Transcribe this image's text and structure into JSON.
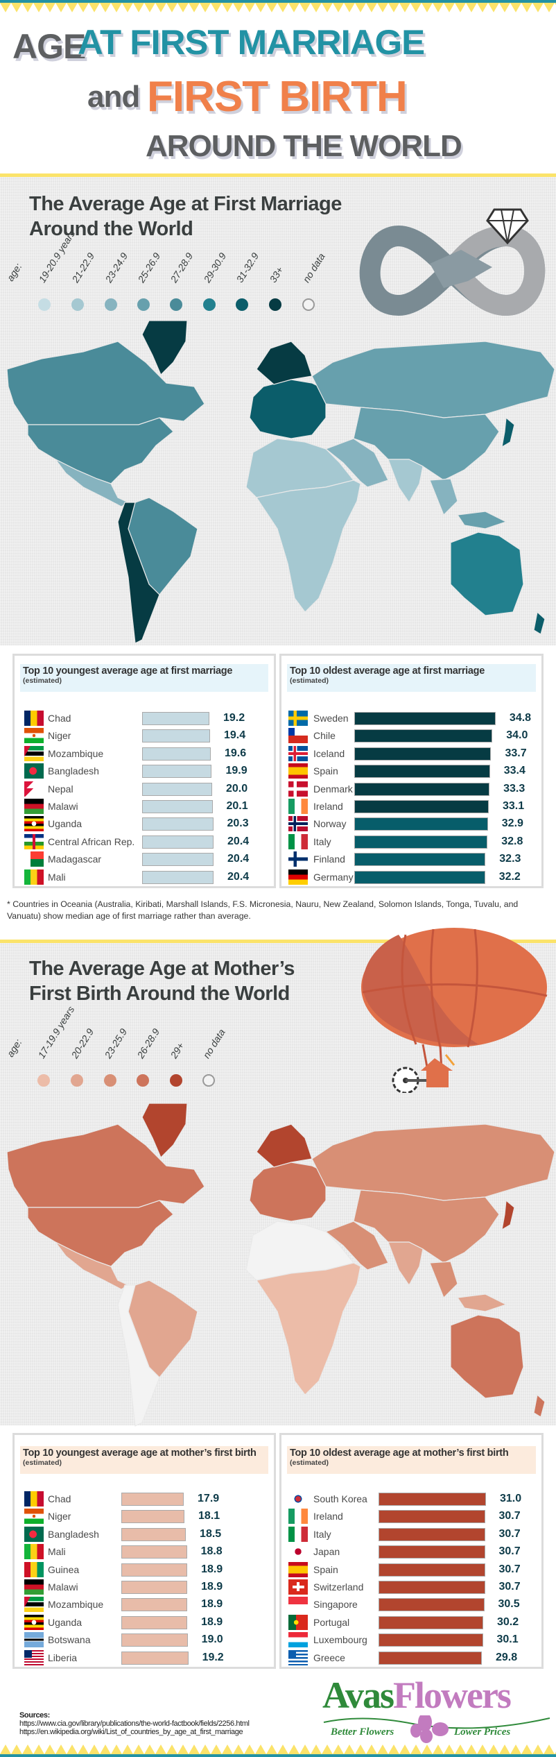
{
  "header": {
    "title_age": "AGE",
    "title_marriage": "AT FIRST MARRIAGE",
    "title_and": "and",
    "title_birth": "FIRST BIRTH",
    "title_world": "AROUND THE WORLD",
    "colors": {
      "teal": "#2292a4",
      "orange": "#f0804a",
      "gray": "#5d5f61",
      "yellow": "#fbe36a"
    }
  },
  "marriage": {
    "title_line1": "The Average Age at First Marriage",
    "title_line2": "Around the World",
    "icon": "infinity-ring-hands-icon",
    "legend_prefix": "age:",
    "legend": [
      {
        "label": "19-20.9 years",
        "color": "#c5dde4"
      },
      {
        "label": "21-22.9",
        "color": "#a5c8d1"
      },
      {
        "label": "23-24.9",
        "color": "#86b3bf"
      },
      {
        "label": "25-26.9",
        "color": "#67a0ad"
      },
      {
        "label": "27-28.9",
        "color": "#4a8b99"
      },
      {
        "label": "29-30.9",
        "color": "#22808e"
      },
      {
        "label": "31-32.9",
        "color": "#0b5d6a"
      },
      {
        "label": "33+",
        "color": "#063b43"
      },
      {
        "label": "no data",
        "color": "#f3f3f3"
      }
    ],
    "youngest": {
      "title": "Top 10 youngest average age at first marriage",
      "subtitle": "(estimated)",
      "bar_color": "#c6dae2",
      "rows": [
        {
          "country": "Chad",
          "value": 19.2,
          "display": "19.2"
        },
        {
          "country": "Niger",
          "value": 19.4,
          "display": "19.4"
        },
        {
          "country": "Mozambique",
          "value": 19.6,
          "display": "19.6"
        },
        {
          "country": "Bangladesh",
          "value": 19.9,
          "display": "19.9"
        },
        {
          "country": "Nepal",
          "value": 20.0,
          "display": "20.0"
        },
        {
          "country": "Malawi",
          "value": 20.1,
          "display": "20.1"
        },
        {
          "country": "Uganda",
          "value": 20.3,
          "display": "20.3"
        },
        {
          "country": "Central African Rep.",
          "value": 20.4,
          "display": "20.4"
        },
        {
          "country": "Madagascar",
          "value": 20.4,
          "display": "20.4"
        },
        {
          "country": "Mali",
          "value": 20.4,
          "display": "20.4"
        }
      ]
    },
    "oldest": {
      "title": "Top 10 oldest average age at first marriage",
      "subtitle": "(estimated)",
      "rows": [
        {
          "country": "Sweden",
          "value": 34.8,
          "display": "34.8",
          "color": "#063b43"
        },
        {
          "country": "Chile",
          "value": 34.0,
          "display": "34.0",
          "color": "#063b43"
        },
        {
          "country": "Iceland",
          "value": 33.7,
          "display": "33.7",
          "color": "#063b43"
        },
        {
          "country": "Spain",
          "value": 33.4,
          "display": "33.4",
          "color": "#063b43"
        },
        {
          "country": "Denmark",
          "value": 33.3,
          "display": "33.3",
          "color": "#063b43"
        },
        {
          "country": "Ireland",
          "value": 33.1,
          "display": "33.1",
          "color": "#063b43"
        },
        {
          "country": "Norway",
          "value": 32.9,
          "display": "32.9",
          "color": "#075d6a"
        },
        {
          "country": "Italy",
          "value": 32.8,
          "display": "32.8",
          "color": "#075d6a"
        },
        {
          "country": "Finland",
          "value": 32.3,
          "display": "32.3",
          "color": "#075d6a"
        },
        {
          "country": "Germany",
          "value": 32.2,
          "display": "32.2",
          "color": "#075d6a"
        }
      ]
    },
    "footnote": "* Countries in Oceania (Australia, Kiribati, Marshall Islands, F.S. Micronesia, Nauru, New Zealand, Solomon Islands, Tonga, Tuvalu, and Vanuatu) show median age of first marriage rather than average."
  },
  "birth": {
    "title_line1": "The Average Age at Mother’s",
    "title_line2": "First Birth Around the World",
    "icon": "hot-air-balloon-stork-icon",
    "legend_prefix": "age:",
    "legend": [
      {
        "label": "17-19.9 years",
        "color": "#ecbca8"
      },
      {
        "label": "20-22.9",
        "color": "#e1a690"
      },
      {
        "label": "23-25.9",
        "color": "#d88f75"
      },
      {
        "label": "26-28.9",
        "color": "#cd745b"
      },
      {
        "label": "29+",
        "color": "#b2452e"
      },
      {
        "label": "no data",
        "color": "#f3f3f3"
      }
    ],
    "youngest": {
      "title": "Top 10 youngest average age at mother’s first birth",
      "subtitle": "(estimated)",
      "bar_color": "#e8bca9",
      "rows": [
        {
          "country": "Chad",
          "value": 17.9,
          "display": "17.9"
        },
        {
          "country": "Niger",
          "value": 18.1,
          "display": "18.1"
        },
        {
          "country": "Bangladesh",
          "value": 18.5,
          "display": "18.5"
        },
        {
          "country": "Mali",
          "value": 18.8,
          "display": "18.8"
        },
        {
          "country": "Guinea",
          "value": 18.9,
          "display": "18.9"
        },
        {
          "country": "Malawi",
          "value": 18.9,
          "display": "18.9"
        },
        {
          "country": "Mozambique",
          "value": 18.9,
          "display": "18.9"
        },
        {
          "country": "Uganda",
          "value": 18.9,
          "display": "18.9"
        },
        {
          "country": "Botswana",
          "value": 19.0,
          "display": "19.0"
        },
        {
          "country": "Liberia",
          "value": 19.2,
          "display": "19.2"
        }
      ]
    },
    "oldest": {
      "title": "Top 10 oldest average age at mother’s first birth",
      "subtitle": "(estimated)",
      "bar_color": "#b2452e",
      "rows": [
        {
          "country": "South Korea",
          "value": 31.0,
          "display": "31.0"
        },
        {
          "country": "Ireland",
          "value": 30.7,
          "display": "30.7"
        },
        {
          "country": "Italy",
          "value": 30.7,
          "display": "30.7"
        },
        {
          "country": "Japan",
          "value": 30.7,
          "display": "30.7"
        },
        {
          "country": "Spain",
          "value": 30.7,
          "display": "30.7"
        },
        {
          "country": "Switzerland",
          "value": 30.7,
          "display": "30.7"
        },
        {
          "country": "Singapore",
          "value": 30.5,
          "display": "30.5"
        },
        {
          "country": "Portugal",
          "value": 30.2,
          "display": "30.2"
        },
        {
          "country": "Luxembourg",
          "value": 30.1,
          "display": "30.1"
        },
        {
          "country": "Greece",
          "value": 29.8,
          "display": "29.8"
        }
      ]
    }
  },
  "footer": {
    "sources_label": "Sources:",
    "sources": [
      "https://www.cia.gov/library/publications/the-world-factbook/fields/2256.html",
      "https://en.wikipedia.org/wiki/List_of_countries_by_age_at_first_marriage"
    ],
    "logo": {
      "part1": "Avas",
      "part2": "Flowers",
      "tag_left": "Better Flowers",
      "tag_right": "Lower Prices",
      "green": "#2f8a3a",
      "purple": "#c27bbf"
    }
  }
}
